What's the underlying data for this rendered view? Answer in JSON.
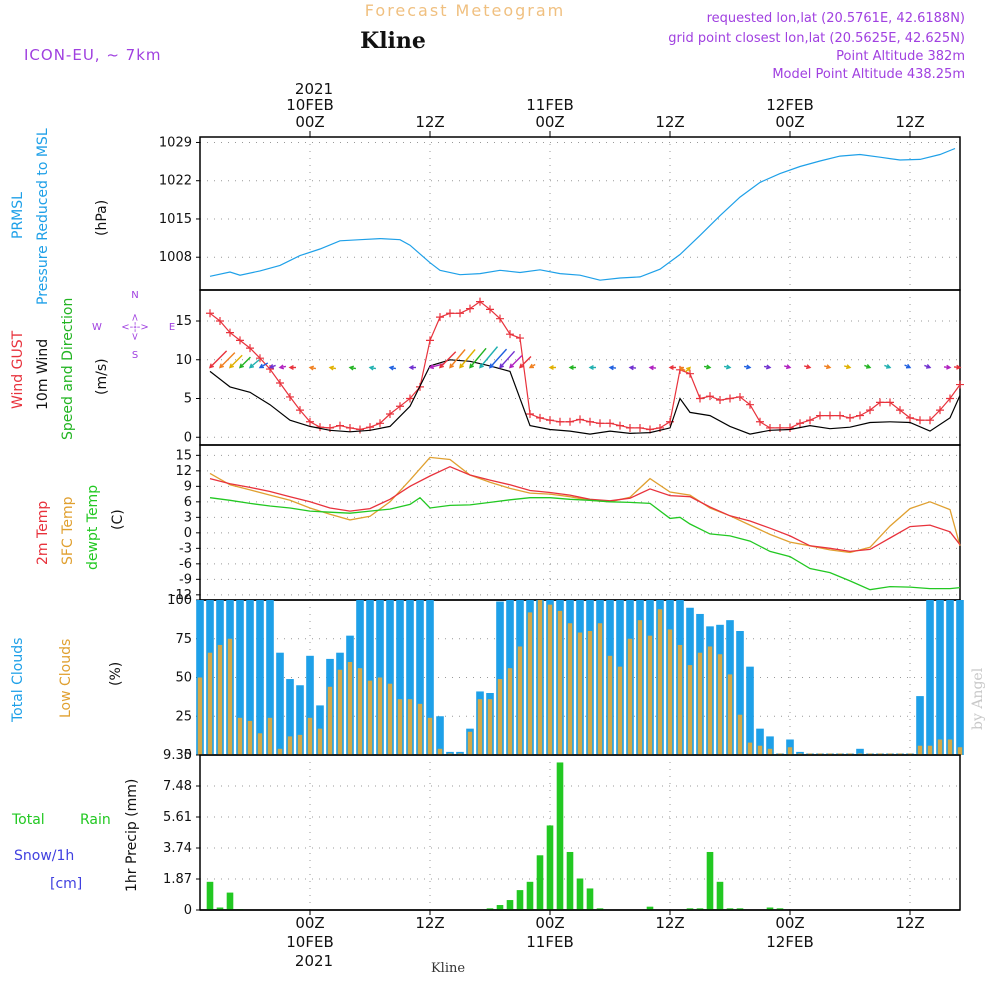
{
  "header": {
    "title": "Forecast Meteogram",
    "station": "Kline",
    "model": "ICON-EU, ~ 7km",
    "requested": "requested lon,lat (20.5761E, 42.6188N)",
    "grid_point": "grid point closest lon,lat (20.5625E, 42.625N)",
    "point_altitude": "Point Altitude 382m",
    "model_altitude": "Model Point Altitude 438.25m",
    "footer_station": "Kline",
    "watermark": "by Angel"
  },
  "time_axis": {
    "top_year": "2021",
    "bottom_year": "2021",
    "tick_labels": [
      "00Z",
      "12Z",
      "00Z",
      "12Z",
      "00Z",
      "12Z"
    ],
    "tick_hours": [
      0,
      12,
      24,
      36,
      48,
      60
    ],
    "date_labels": [
      "10FEB",
      "11FEB",
      "12FEB"
    ],
    "date_hours": [
      0,
      24,
      48
    ],
    "range_hours": [
      -11,
      65
    ]
  },
  "colors": {
    "pressure": "#1ea0e8",
    "gust": "#e8323c",
    "wind": "#000000",
    "direction": "#22b422",
    "temp": "#e8323c",
    "sfc": "#e0a030",
    "dewpt": "#22c822",
    "total_clouds": "#1ea0e8",
    "low_clouds": "#d4a848",
    "rain": "#22c822",
    "snow": "#4040e0",
    "header_purple": "#a040e0",
    "header_orange": "#f0c080"
  },
  "panels": {
    "pressure": {
      "labels": [
        "PRMSL",
        "Pressure Reduced to MSL"
      ],
      "unit": "(hPa)",
      "ticks": [
        "1008",
        "1015",
        "1022",
        "1029"
      ],
      "ylim": [
        1002,
        1030
      ]
    },
    "wind": {
      "labels": [
        "Wind GUST",
        "10m Wind",
        "Speed and Direction"
      ],
      "unit": "(m/s)",
      "ticks": [
        "0",
        "5",
        "10",
        "15"
      ],
      "ylim": [
        -1,
        19
      ],
      "compass": [
        "N",
        "W",
        "E",
        "S"
      ],
      "compass_arrows": [
        "<--->",
        "<--->"
      ]
    },
    "temp": {
      "labels": [
        "2m Temp",
        "SFC Temp",
        "dewpt Temp"
      ],
      "unit": "(C)",
      "ticks": [
        "15",
        "12",
        "9",
        "6",
        "3",
        "0",
        "-3",
        "-6",
        "-9",
        "-12"
      ],
      "ylim": [
        -13,
        17
      ]
    },
    "clouds": {
      "labels": [
        "Total Clouds",
        "Low Clouds"
      ],
      "unit": "(%)",
      "ticks": [
        "0",
        "25",
        "50",
        "75",
        "100"
      ],
      "ylim": [
        0,
        100
      ]
    },
    "precip": {
      "labels": [
        "Total",
        "Rain",
        "Snow/1h",
        "[cm]"
      ],
      "unit": "1hr Precip (mm)",
      "ticks": [
        "0",
        "1.87",
        "3.74",
        "5.61",
        "7.48",
        "9.35"
      ],
      "ylim": [
        0,
        9.35
      ]
    }
  },
  "chart_data": {
    "type": "line",
    "x_unit": "hours since 10FEB2021 00Z",
    "pressure_series": {
      "x": [
        -10,
        -8,
        -7,
        -5,
        -3,
        -1,
        1,
        3,
        5,
        7,
        9,
        10,
        12,
        13,
        15,
        17,
        19,
        21,
        23,
        25,
        27,
        29,
        31,
        33,
        35,
        37,
        39,
        41,
        43,
        45,
        47,
        49,
        51,
        53,
        55,
        57,
        59,
        61,
        63,
        64.5
      ],
      "y": [
        1004.5,
        1005.3,
        1004.7,
        1005.5,
        1006.5,
        1008.3,
        1009.5,
        1011,
        1011.2,
        1011.4,
        1011.2,
        1010.2,
        1007,
        1005.6,
        1004.8,
        1005,
        1005.6,
        1005.2,
        1005.7,
        1005,
        1004.7,
        1003.8,
        1004.2,
        1004.4,
        1005.8,
        1008.5,
        1012,
        1015.6,
        1019,
        1021.7,
        1023.3,
        1024.6,
        1025.6,
        1026.5,
        1026.8,
        1026.3,
        1025.8,
        1025.9,
        1026.8,
        1027.9
      ]
    },
    "gust_series": {
      "x": [
        -10,
        -9,
        -8,
        -7,
        -6,
        -5,
        -4,
        -3,
        -2,
        -1,
        0,
        1,
        2,
        3,
        4,
        5,
        6,
        7,
        8,
        9,
        10,
        11,
        12,
        13,
        14,
        15,
        16,
        17,
        18,
        19,
        20,
        21,
        22,
        23,
        24,
        25,
        26,
        27,
        28,
        29,
        30,
        31,
        32,
        33,
        34,
        35,
        36,
        37,
        38,
        39,
        40,
        41,
        42,
        43,
        44,
        45,
        46,
        47,
        48,
        49,
        50,
        51,
        52,
        53,
        54,
        55,
        56,
        57,
        58,
        59,
        60,
        61,
        62,
        63,
        64,
        65
      ],
      "y": [
        16,
        15,
        13.5,
        12.5,
        11.5,
        10.2,
        8.8,
        7,
        5.2,
        3.5,
        2,
        1.3,
        1.2,
        1.5,
        1.2,
        1,
        1.3,
        1.8,
        3,
        4,
        5,
        6.5,
        12.5,
        15.5,
        16,
        16,
        16.6,
        17.5,
        16.5,
        15.3,
        13.3,
        12.8,
        3,
        2.5,
        2.2,
        2,
        2,
        2.3,
        2,
        1.8,
        1.8,
        1.5,
        1.2,
        1.2,
        1,
        1.2,
        2,
        8.7,
        8.2,
        5,
        5.3,
        4.8,
        5,
        5.2,
        4.2,
        2,
        1.2,
        1.2,
        1.2,
        1.8,
        2.2,
        2.8,
        2.8,
        2.8,
        2.5,
        2.8,
        3.5,
        4.5,
        4.5,
        3.5,
        2.5,
        2.2,
        2.2,
        3.5,
        5,
        6.8
      ]
    },
    "wind_series": {
      "x": [
        -10,
        -8,
        -6,
        -4,
        -2,
        0,
        2,
        4,
        6,
        8,
        10,
        12,
        14,
        16,
        18,
        20,
        22,
        24,
        26,
        28,
        30,
        32,
        34,
        36,
        37,
        38,
        40,
        42,
        44,
        46,
        48,
        50,
        52,
        54,
        56,
        58,
        60,
        62,
        64,
        65
      ],
      "y": [
        8.5,
        6.5,
        5.8,
        4.2,
        2.2,
        1.4,
        0.9,
        0.7,
        0.9,
        1.4,
        4,
        9.2,
        10,
        9.8,
        9.2,
        8.5,
        1.5,
        1,
        0.8,
        0.4,
        0.8,
        0.5,
        0.6,
        1.2,
        5,
        3.2,
        2.8,
        1.4,
        0.4,
        0.9,
        1,
        1.5,
        1.1,
        1.3,
        1.9,
        2,
        1.9,
        0.8,
        2.5,
        5.4
      ]
    },
    "direction_barbs": {
      "x": [
        -10,
        -9,
        -8,
        -7,
        -6,
        -5,
        -4,
        -3,
        -2,
        0,
        2,
        4,
        6,
        8,
        10,
        12,
        13,
        14,
        15,
        16,
        17,
        18,
        19,
        20,
        21,
        22,
        24,
        26,
        28,
        30,
        32,
        34,
        36,
        37,
        38,
        40,
        42,
        44,
        46,
        48,
        50,
        52,
        54,
        56,
        58,
        60,
        62,
        64,
        65
      ],
      "angle": [
        225,
        225,
        225,
        225,
        230,
        240,
        250,
        260,
        270,
        280,
        280,
        280,
        280,
        280,
        270,
        255,
        225,
        220,
        220,
        220,
        220,
        222,
        222,
        225,
        225,
        240,
        270,
        270,
        270,
        275,
        275,
        275,
        270,
        300,
        45,
        100,
        100,
        100,
        100,
        105,
        105,
        105,
        105,
        110,
        110,
        115,
        110,
        95,
        95
      ]
    },
    "temp_series": {
      "x": [
        -10,
        -8,
        -6,
        -4,
        -2,
        0,
        2,
        4,
        6,
        8,
        10,
        12,
        14,
        16,
        18,
        20,
        22,
        24,
        26,
        28,
        30,
        32,
        34,
        36,
        38,
        40,
        42,
        44,
        46,
        48,
        50,
        52,
        54,
        56,
        58,
        60,
        62,
        64,
        65
      ],
      "y": [
        10.5,
        9.5,
        8.8,
        8,
        7,
        6,
        4.8,
        4.2,
        4.7,
        6.5,
        9,
        11,
        12.8,
        11.2,
        10.2,
        9.3,
        8.2,
        7.8,
        7.3,
        6.5,
        6.2,
        6.7,
        8.5,
        7.2,
        7,
        5,
        3.3,
        2.3,
        0.9,
        -0.6,
        -2.5,
        -3,
        -3.6,
        -3.2,
        -1,
        1.2,
        1.5,
        0.2,
        -2.3
      ]
    },
    "sfc_series": {
      "x": [
        -10,
        -8,
        -6,
        -4,
        -2,
        0,
        2,
        4,
        6,
        8,
        10,
        12,
        14,
        16,
        18,
        20,
        22,
        24,
        26,
        28,
        30,
        32,
        34,
        36,
        38,
        40,
        42,
        44,
        46,
        48,
        50,
        52,
        54,
        56,
        58,
        60,
        62,
        64,
        65
      ],
      "y": [
        11.5,
        9.3,
        8.3,
        7.3,
        6.3,
        4.8,
        3.6,
        2.5,
        3.2,
        6,
        10.2,
        14.6,
        14.2,
        11.2,
        9.8,
        8.6,
        7.7,
        7.5,
        7,
        6.3,
        6,
        6.9,
        10.5,
        7.9,
        7.3,
        4.8,
        3.3,
        1.5,
        -0.3,
        -1.8,
        -2.5,
        -3.3,
        -3.8,
        -2.8,
        1.3,
        4.7,
        6,
        4.5,
        -2.5
      ]
    },
    "dewpt_series": {
      "x": [
        -10,
        -8,
        -6,
        -4,
        -2,
        0,
        2,
        4,
        6,
        8,
        10,
        11,
        12,
        14,
        16,
        18,
        20,
        22,
        24,
        26,
        28,
        30,
        32,
        34,
        36,
        37,
        38,
        40,
        42,
        44,
        46,
        48,
        50,
        52,
        54,
        56,
        58,
        60,
        62,
        64,
        65
      ],
      "y": [
        6.8,
        6.3,
        5.7,
        5.2,
        4.8,
        4.2,
        4,
        3.8,
        4.2,
        4.6,
        5.5,
        6.8,
        4.8,
        5.3,
        5.4,
        5.9,
        6.4,
        6.8,
        6.8,
        6.5,
        6.3,
        6,
        5.9,
        5.7,
        2.8,
        3,
        1.7,
        -0.2,
        -0.6,
        -1.6,
        -3.6,
        -4.6,
        -6.9,
        -7.7,
        -9.3,
        -11,
        -10.4,
        -10.5,
        -10.8,
        -10.8,
        -10.6
      ]
    },
    "clouds": {
      "x": [
        -11,
        -10,
        -9,
        -8,
        -7,
        -6,
        -5,
        -4,
        -3,
        -2,
        -1,
        0,
        1,
        2,
        3,
        4,
        5,
        6,
        7,
        8,
        9,
        10,
        11,
        12,
        13,
        14,
        15,
        16,
        17,
        18,
        19,
        20,
        21,
        22,
        23,
        24,
        25,
        26,
        27,
        28,
        29,
        30,
        31,
        32,
        33,
        34,
        35,
        36,
        37,
        38,
        39,
        40,
        41,
        42,
        43,
        44,
        45,
        46,
        47,
        48,
        49,
        50,
        51,
        52,
        53,
        54,
        55,
        56,
        57,
        58,
        59,
        60,
        61,
        62,
        63,
        64,
        65
      ],
      "total": [
        100,
        100,
        100,
        100,
        100,
        100,
        100,
        100,
        66,
        49,
        45,
        64,
        32,
        62,
        66,
        77,
        100,
        100,
        100,
        100,
        100,
        100,
        100,
        100,
        25,
        2,
        2,
        17,
        41,
        40,
        99,
        100,
        100,
        100,
        100,
        100,
        100,
        100,
        100,
        100,
        100,
        100,
        100,
        100,
        100,
        100,
        100,
        100,
        100,
        95,
        91,
        83,
        84,
        87,
        80,
        57,
        17,
        12,
        1,
        10,
        2,
        1,
        1,
        1,
        1,
        1,
        4,
        1,
        1,
        1,
        1,
        1,
        38,
        100,
        100,
        100,
        100
      ],
      "low": [
        50,
        66,
        71,
        75,
        24,
        22,
        14,
        24,
        4,
        12,
        13,
        24,
        17,
        44,
        55,
        60,
        56,
        48,
        50,
        46,
        36,
        36,
        33,
        24,
        4,
        1,
        1,
        15,
        36,
        36,
        49,
        56,
        70,
        92,
        100,
        97,
        93,
        85,
        79,
        80,
        85,
        64,
        57,
        75,
        87,
        77,
        94,
        81,
        71,
        58,
        66,
        70,
        65,
        52,
        26,
        8,
        6,
        4,
        1,
        5,
        1,
        1,
        1,
        1,
        1,
        1,
        1,
        1,
        1,
        1,
        1,
        1,
        6,
        6,
        10,
        10,
        5
      ]
    },
    "precip": {
      "x": [
        -11,
        -10,
        -9,
        -8,
        -7,
        -6,
        -5,
        -4,
        -3,
        -2,
        -1,
        0,
        1,
        2,
        3,
        4,
        5,
        6,
        7,
        8,
        9,
        10,
        11,
        12,
        13,
        14,
        15,
        16,
        17,
        18,
        19,
        20,
        21,
        22,
        23,
        24,
        25,
        26,
        27,
        28,
        29,
        30,
        31,
        32,
        33,
        34,
        35,
        36,
        37,
        38,
        39,
        40,
        41,
        42,
        43,
        44,
        45,
        46,
        47,
        48,
        49,
        50,
        51,
        52,
        53,
        54,
        55,
        56,
        57,
        58,
        59,
        60,
        61,
        62,
        63,
        64,
        65
      ],
      "rain": [
        0,
        1.7,
        0.15,
        1.05,
        0.05,
        0,
        0,
        0,
        0,
        0,
        0,
        0,
        0,
        0,
        0,
        0,
        0,
        0,
        0,
        0,
        0,
        0,
        0,
        0,
        0,
        0,
        0,
        0,
        0,
        0.1,
        0.3,
        0.6,
        1.2,
        1.7,
        3.3,
        5.1,
        8.9,
        3.5,
        1.9,
        1.3,
        0.1,
        0,
        0,
        0,
        0,
        0.2,
        0,
        0,
        0,
        0.1,
        0.1,
        3.5,
        1.7,
        0.1,
        0.1,
        0,
        0,
        0.15,
        0.1,
        0,
        0,
        0,
        0,
        0,
        0,
        0,
        0,
        0,
        0,
        0,
        0,
        0,
        0,
        0,
        0,
        0,
        0
      ],
      "snow": [
        0,
        0,
        0,
        0,
        0,
        0,
        0,
        0,
        0,
        0,
        0,
        0,
        0,
        0,
        0,
        0,
        0,
        0,
        0,
        0,
        0,
        0,
        0,
        0,
        0,
        0,
        0,
        0,
        0,
        0,
        0,
        0,
        0,
        0,
        0,
        0,
        0,
        0,
        0,
        0,
        0,
        0,
        0,
        0,
        0,
        0,
        0,
        0,
        0,
        0,
        0,
        0,
        0,
        0,
        0,
        0,
        0,
        0,
        0,
        0,
        0,
        0,
        0,
        0,
        0,
        0,
        0,
        0,
        0,
        0,
        0,
        0,
        0,
        0,
        0,
        0,
        0
      ]
    }
  }
}
